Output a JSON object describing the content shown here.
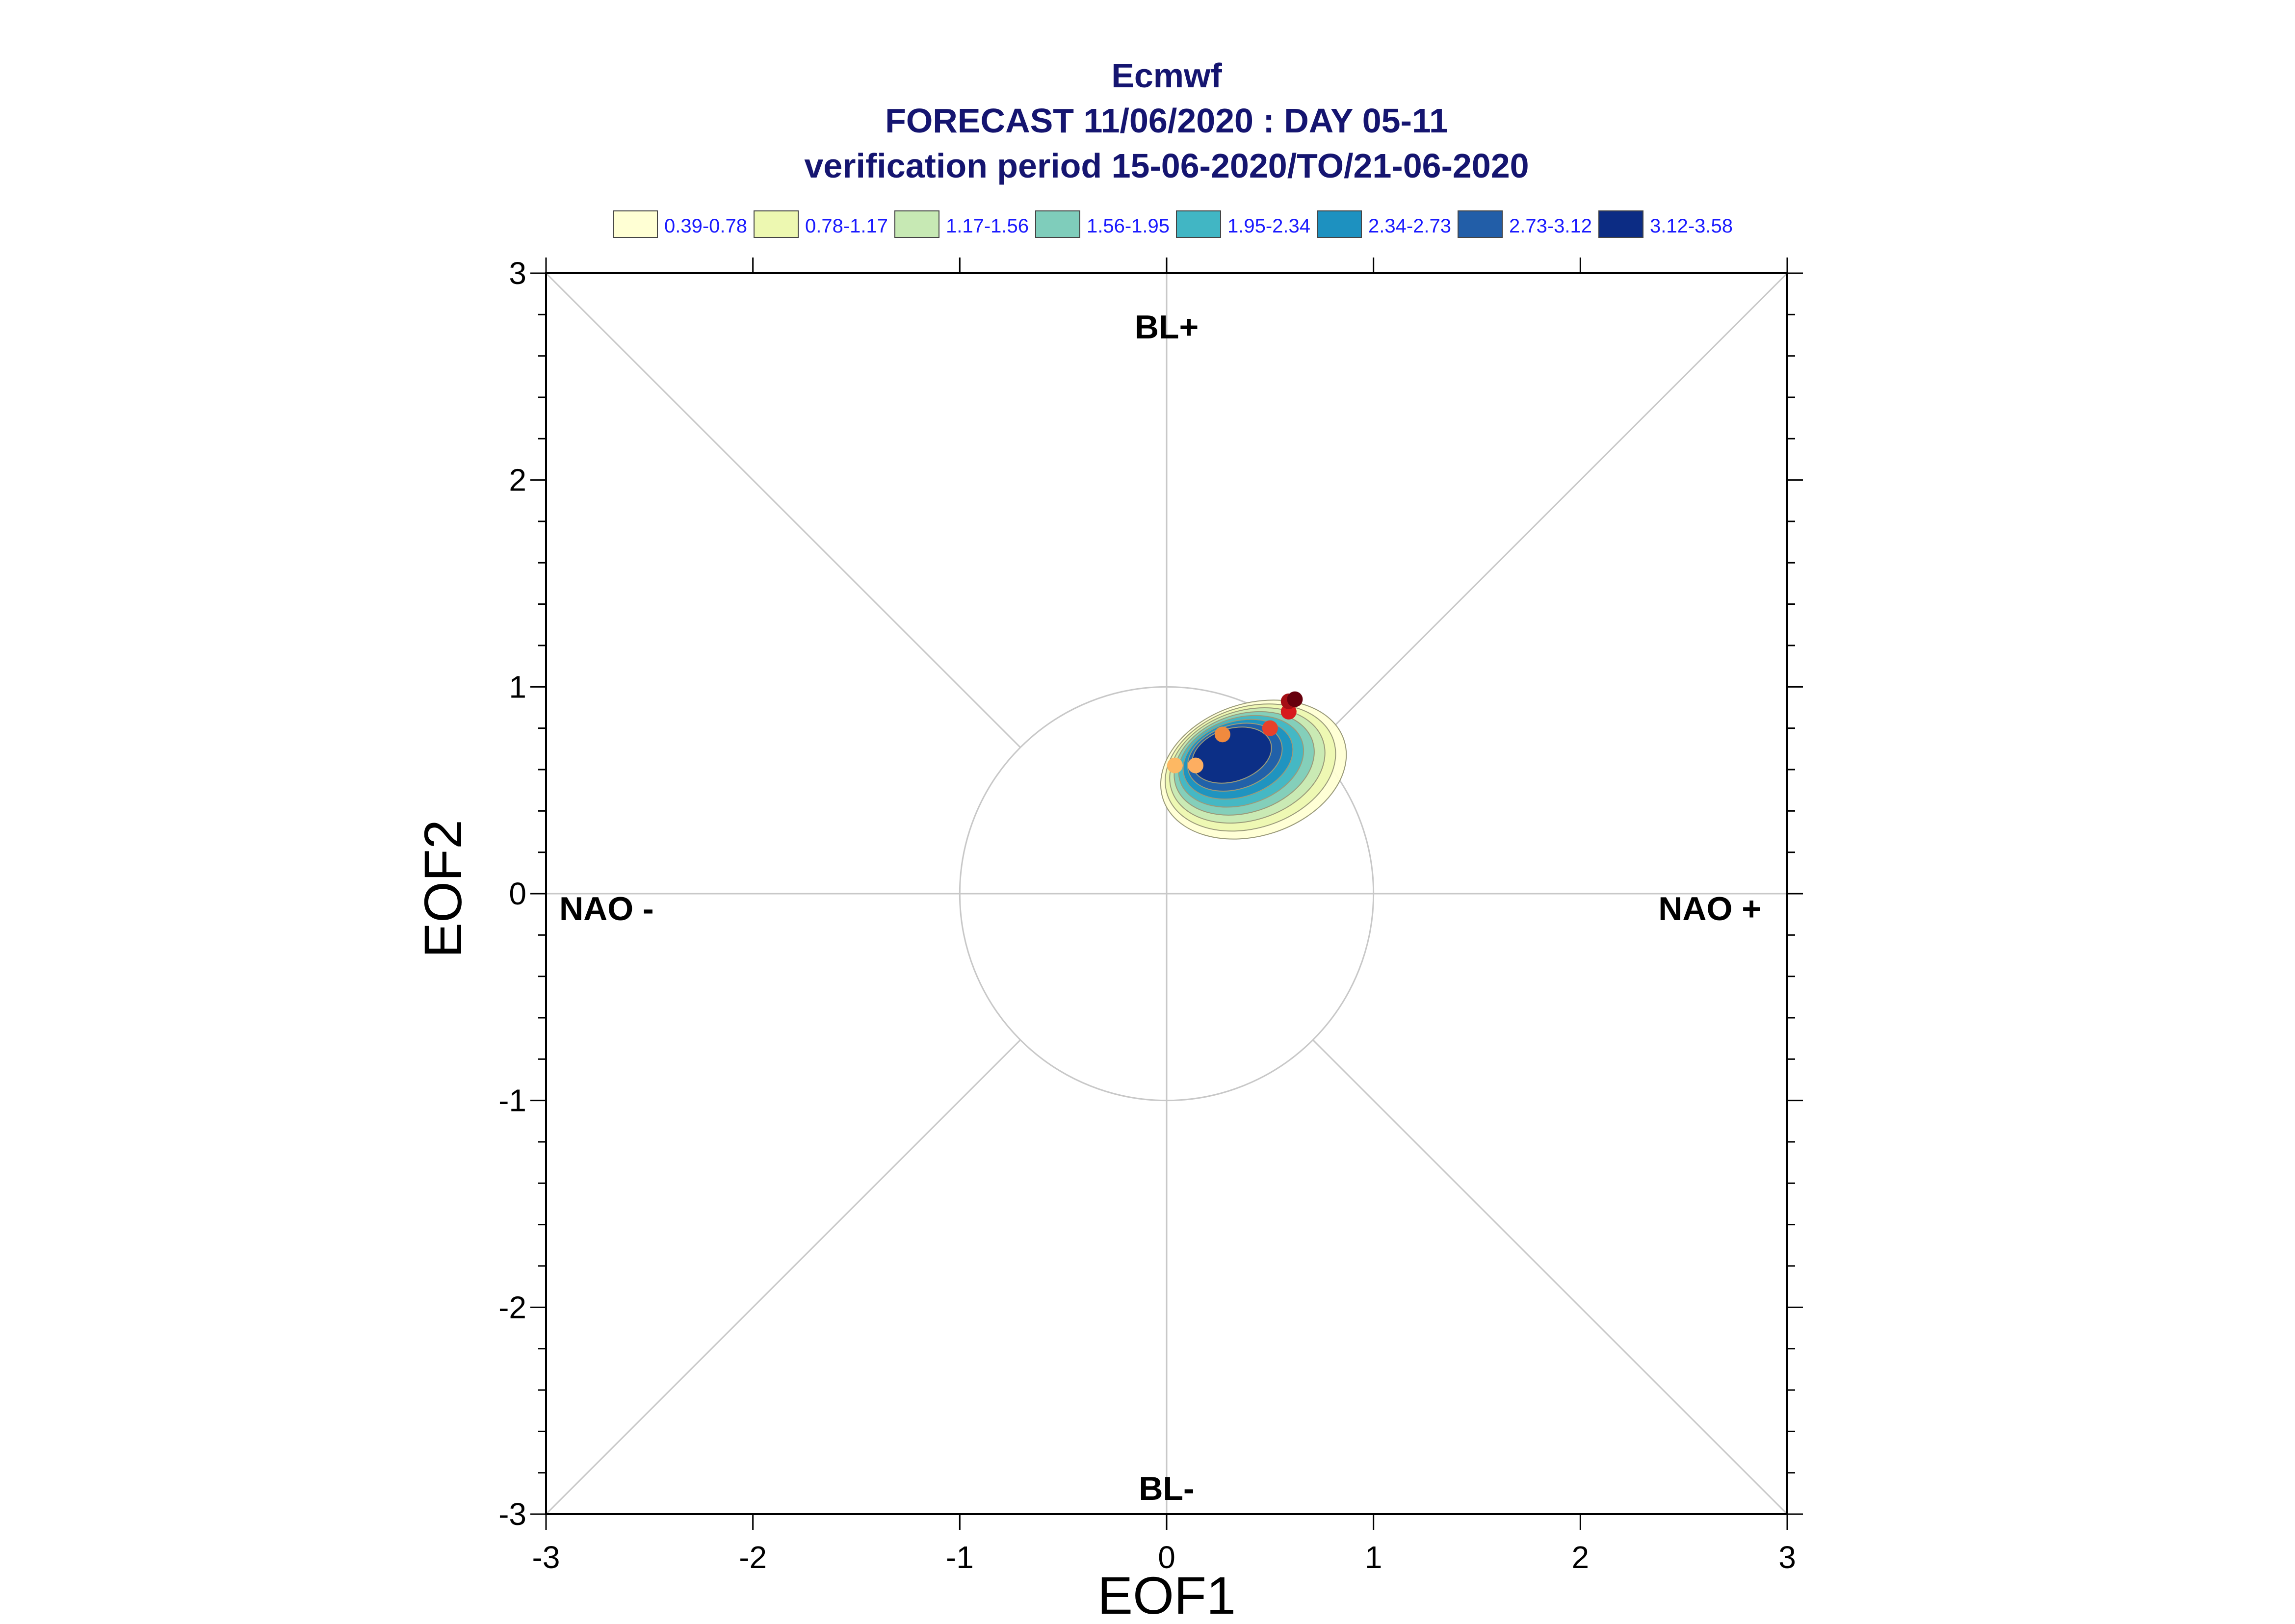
{
  "chart_data": {
    "type": "scatter",
    "title": "Ecmwf",
    "subtitle": "FORECAST 11/06/2020 : DAY 05-11",
    "subtitle2": "verification period 15-06-2020/TO/21-06-2020",
    "xlabel": "EOF1",
    "ylabel": "EOF2",
    "xlim": [
      -3,
      3
    ],
    "ylim": [
      -3,
      3
    ],
    "xticks": [
      -3,
      -2,
      -1,
      0,
      1,
      2,
      3
    ],
    "yticks": [
      -3,
      -2,
      -1,
      0,
      1,
      2,
      3
    ],
    "grid": false,
    "legend_position": "top",
    "regime_labels": {
      "top": "BL+",
      "bottom": "BL-",
      "left": "NAO -",
      "right": "NAO +"
    },
    "unit_circle_radius": 1,
    "density_legend": [
      {
        "label": "0.39-0.78",
        "color": "#ffffd4"
      },
      {
        "label": "0.78-1.17",
        "color": "#edf8b1"
      },
      {
        "label": "1.17-1.56",
        "color": "#c7e9b4"
      },
      {
        "label": "1.56-1.95",
        "color": "#7fcdbb"
      },
      {
        "label": "1.95-2.34",
        "color": "#41b6c4"
      },
      {
        "label": "2.34-2.73",
        "color": "#1d91c0"
      },
      {
        "label": "2.73-3.12",
        "color": "#225ea8"
      },
      {
        "label": "3.12-3.58",
        "color": "#0c2c84"
      }
    ],
    "density_center": [
      0.3,
      0.68
    ],
    "trajectory_points": [
      {
        "x": 0.04,
        "y": 0.62,
        "color": "#fdb863"
      },
      {
        "x": 0.14,
        "y": 0.62,
        "color": "#fdae61"
      },
      {
        "x": 0.27,
        "y": 0.77,
        "color": "#f08a3e"
      },
      {
        "x": 0.5,
        "y": 0.8,
        "color": "#e8402a"
      },
      {
        "x": 0.59,
        "y": 0.88,
        "color": "#d7191c"
      },
      {
        "x": 0.59,
        "y": 0.93,
        "color": "#a50f15"
      },
      {
        "x": 0.62,
        "y": 0.94,
        "color": "#67000d"
      }
    ]
  }
}
